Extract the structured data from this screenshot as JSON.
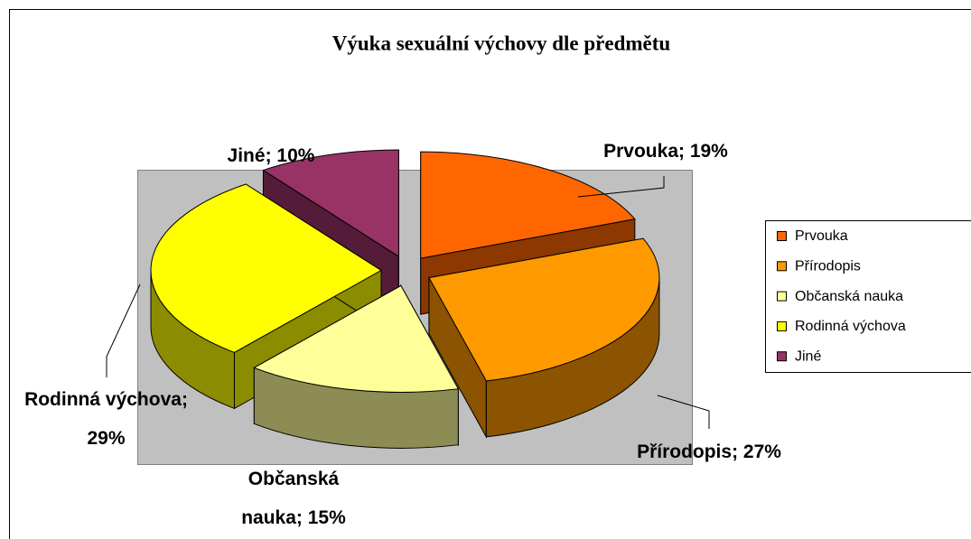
{
  "chart_data": {
    "type": "pie",
    "title": "Výuka sexuální výchovy dle předmětu",
    "categories": [
      "Prvouka",
      "Přírodopis",
      "Občanská nauka",
      "Rodinná výchova",
      "Jiné"
    ],
    "values": [
      19,
      27,
      15,
      29,
      10
    ],
    "value_labels": [
      "Prvouka; 19%",
      "Přírodopis; 27%",
      "Občanská nauka; 15%",
      "Rodinná výchova; 29%",
      "Jiné; 10%"
    ],
    "colors": [
      "#ff6600",
      "#ff9900",
      "#ffff99",
      "#ffff00",
      "#993366"
    ],
    "legend": "right"
  }
}
